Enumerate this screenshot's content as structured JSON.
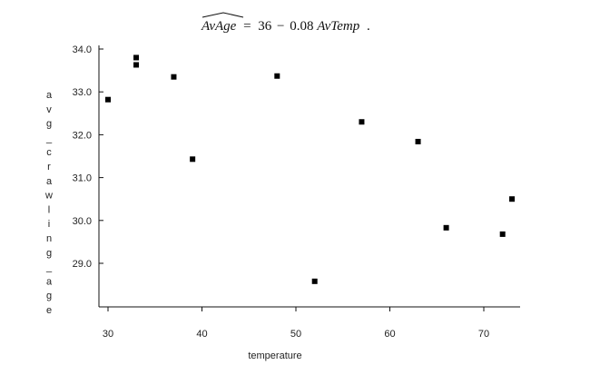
{
  "chart_data": {
    "type": "scatter",
    "title_parts": {
      "lhs": "AvAge",
      "equals": "=",
      "intercept": "36",
      "minus": "−",
      "slope": "0.08",
      "variable": "AvTemp",
      "period": "."
    },
    "xlabel": "temperature",
    "ylabel": "avg_crawling_age",
    "xlim": [
      29,
      74
    ],
    "ylim": [
      28.0,
      34.2
    ],
    "xticks": [
      30,
      40,
      50,
      60,
      70
    ],
    "xtick_labels": [
      "30",
      "40",
      "50",
      "60",
      "70"
    ],
    "yticks": [
      29.0,
      30.0,
      31.0,
      32.0,
      33.0,
      34.0
    ],
    "ytick_labels": [
      "29.0",
      "30.0",
      "31.0",
      "32.0",
      "33.0",
      "34.0"
    ],
    "grid": false,
    "marker": "square",
    "marker_color": "#000000",
    "points": [
      {
        "x": 30,
        "y": 32.82
      },
      {
        "x": 33,
        "y": 33.8
      },
      {
        "x": 33,
        "y": 33.63
      },
      {
        "x": 37,
        "y": 33.35
      },
      {
        "x": 39,
        "y": 31.43
      },
      {
        "x": 48,
        "y": 33.37
      },
      {
        "x": 52,
        "y": 28.58
      },
      {
        "x": 57,
        "y": 32.3
      },
      {
        "x": 63,
        "y": 31.84
      },
      {
        "x": 66,
        "y": 29.83
      },
      {
        "x": 72,
        "y": 29.68
      },
      {
        "x": 73,
        "y": 30.5
      }
    ]
  }
}
